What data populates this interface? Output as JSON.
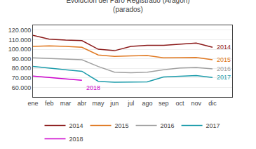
{
  "chart_data": {
    "type": "line",
    "title": "Evolución del Paro Registrado (Aragón)\n(parados)",
    "categories": [
      "ene",
      "feb",
      "mar",
      "abr",
      "may",
      "jun",
      "jul",
      "ago",
      "sep",
      "oct",
      "nov",
      "dic"
    ],
    "series": [
      {
        "name": "2014",
        "color": "#8B1A1A",
        "values": [
          114500,
          110500,
          109500,
          109000,
          100000,
          98500,
          103000,
          104000,
          104000,
          105500,
          106500,
          102000
        ]
      },
      {
        "name": "2015",
        "color": "#E07820",
        "values": [
          103000,
          103500,
          103000,
          102000,
          94000,
          92500,
          93000,
          93500,
          91000,
          91000,
          91500,
          89000
        ]
      },
      {
        "name": "2016",
        "color": "#A0A0A0",
        "values": [
          91000,
          90500,
          90000,
          89000,
          82000,
          76000,
          75500,
          76000,
          78500,
          80500,
          81000,
          79500
        ]
      },
      {
        "name": "2017",
        "color": "#1A9BAA",
        "values": [
          82000,
          80000,
          78500,
          77000,
          66500,
          65500,
          65500,
          66000,
          71000,
          72000,
          72500,
          70500
        ]
      },
      {
        "name": "2018",
        "color": "#CC00CC",
        "values": [
          72000,
          70500,
          68500,
          67500,
          null,
          null,
          null,
          null,
          null,
          null,
          null,
          null
        ]
      }
    ],
    "annotations": [
      "2014",
      "2015",
      "2016",
      "2017",
      "2018"
    ],
    "ylim": [
      50000,
      125000
    ],
    "yticks": [
      {
        "value": 60000,
        "label": "60.000"
      },
      {
        "value": 70000,
        "label": "70.000"
      },
      {
        "value": 80000,
        "label": "80.000"
      },
      {
        "value": 90000,
        "label": "90.000"
      },
      {
        "value": 100000,
        "label": "100.000"
      },
      {
        "value": 110000,
        "label": "110.000"
      },
      {
        "value": 120000,
        "label": "120.000"
      }
    ],
    "grid": true,
    "legend": "bottom"
  }
}
